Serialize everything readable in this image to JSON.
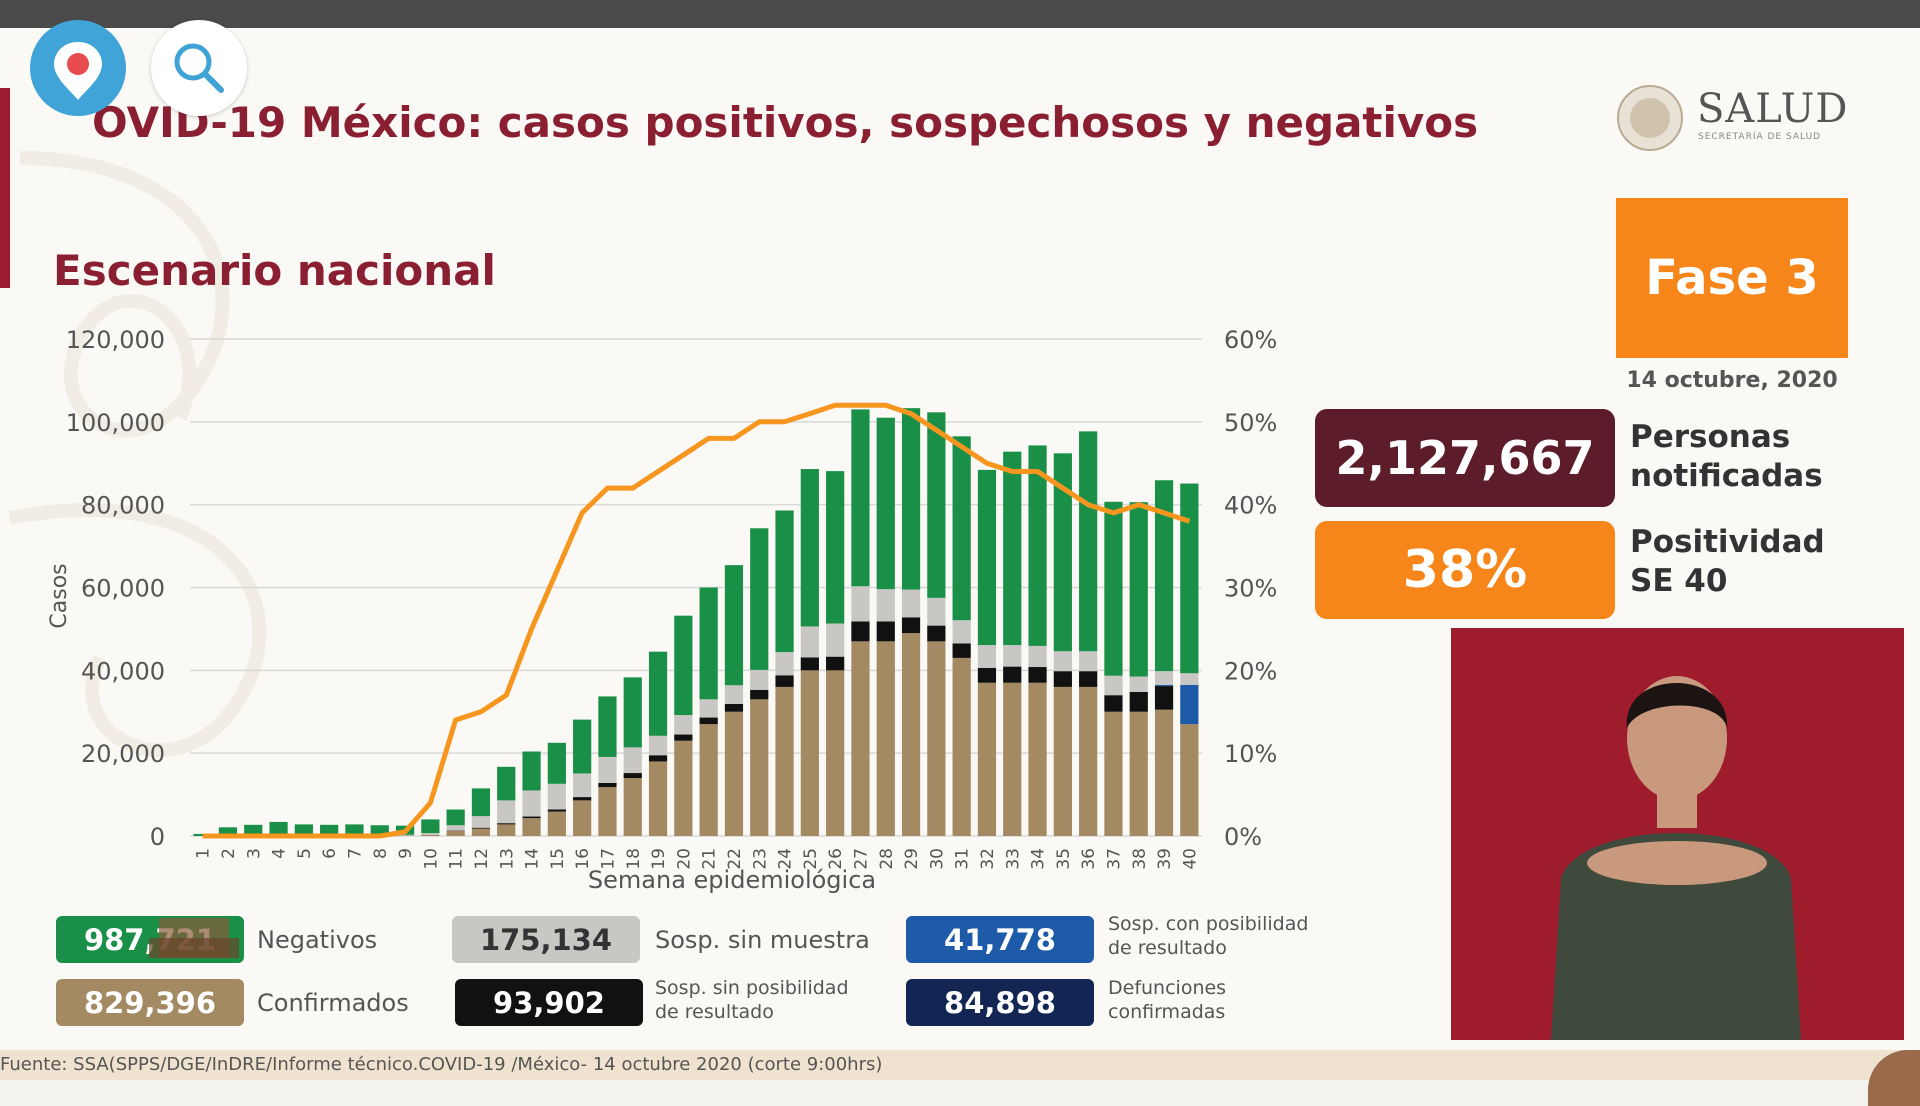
{
  "slide": {
    "title": "OVID-19 México: casos positivos, sospechosos y negativos",
    "subtitle": "Escenario nacional",
    "brand": "SALUD",
    "brand_sub": "SECRETARÍA DE SALUD",
    "phase": "Fase 3",
    "date": "14 octubre, 2020",
    "notified_value": "2,127,667",
    "notified_label_1": "Personas",
    "notified_label_2": "notificadas",
    "positivity_value": "38%",
    "positivity_label_1": "Positividad",
    "positivity_label_2": "SE 40",
    "source": "Fuente: SSA(SPPS/DGE/InDRE/Informe técnico.COVID-19 /México- 14 octubre 2020 (corte 9:00hrs)"
  },
  "legend": {
    "negativos_value": "987,721",
    "negativos_label": "Negativos",
    "confirmados_value": "829,396",
    "confirmados_label": "Confirmados",
    "sin_muestra_value": "175,134",
    "sin_muestra_label": "Sosp. sin muestra",
    "sin_posib_value": "93,902",
    "sin_posib_label_1": "Sosp. sin posibilidad",
    "sin_posib_label_2": "de resultado",
    "con_posib_value": "41,778",
    "con_posib_label_1": "Sosp. con posibilidad",
    "con_posib_label_2": "de resultado",
    "defunciones_value": "84,898",
    "defunciones_label_1": "Defunciones",
    "defunciones_label_2": "confirmadas"
  },
  "colors": {
    "negativos": "#1a8f47",
    "confirmados": "#a48a62",
    "sin_muestra": "#c9c7c4",
    "sin_posib": "#111111",
    "con_posib": "#1d5aa7",
    "defunciones": "#132653",
    "positividad": "#f7961e",
    "brand": "#8a1f32"
  },
  "chart_data": {
    "type": "bar",
    "stacked": true,
    "xlabel": "Semana epidemiológica",
    "ylabel": "Casos",
    "ylim": [
      0,
      120000
    ],
    "yticks": [
      "0",
      "20,000",
      "40,000",
      "60,000",
      "80,000",
      "100,000",
      "120,000"
    ],
    "y2lim": [
      0,
      60
    ],
    "y2ticks": [
      "0%",
      "10%",
      "20%",
      "30%",
      "40%",
      "50%",
      "60%"
    ],
    "grid": true,
    "categories": [
      "1",
      "2",
      "3",
      "4",
      "5",
      "6",
      "7",
      "8",
      "9",
      "10",
      "11",
      "12",
      "13",
      "14",
      "15",
      "16",
      "17",
      "18",
      "19",
      "20",
      "21",
      "22",
      "23",
      "24",
      "25",
      "26",
      "27",
      "28",
      "29",
      "30",
      "31",
      "32",
      "33",
      "34",
      "35",
      "36",
      "37",
      "38",
      "39",
      "40"
    ],
    "series": [
      {
        "name": "Confirmados",
        "values": [
          0,
          0,
          0,
          0,
          0,
          0,
          0,
          0,
          100,
          300,
          1200,
          1800,
          2800,
          4300,
          5900,
          8600,
          11800,
          14000,
          18000,
          23000,
          27000,
          30000,
          33000,
          36000,
          40000,
          40000,
          47000,
          47000,
          49000,
          47000,
          43000,
          37000,
          37000,
          37000,
          36000,
          36000,
          30000,
          30000,
          30500,
          27000
        ]
      },
      {
        "name": "Sosp. sin posibilidad de resultado",
        "values": [
          0,
          0,
          0,
          0,
          0,
          0,
          0,
          0,
          0,
          0,
          100,
          200,
          300,
          400,
          500,
          800,
          1000,
          1200,
          1500,
          1500,
          1600,
          1900,
          2300,
          2800,
          3100,
          3300,
          4800,
          4800,
          3800,
          3800,
          3500,
          3600,
          3900,
          3800,
          3800,
          3800,
          4000,
          4800,
          5700,
          0
        ]
      },
      {
        "name": "Sosp. con posibilidad de resultado",
        "values": [
          0,
          0,
          0,
          0,
          0,
          0,
          0,
          0,
          0,
          0,
          0,
          0,
          0,
          0,
          0,
          0,
          0,
          0,
          0,
          0,
          0,
          0,
          0,
          0,
          0,
          0,
          0,
          0,
          0,
          0,
          0,
          0,
          0,
          0,
          0,
          0,
          0,
          0,
          300,
          9500
        ]
      },
      {
        "name": "Sosp. sin muestra",
        "values": [
          0,
          0,
          0,
          0,
          0,
          0,
          0,
          0,
          200,
          400,
          1300,
          2800,
          5500,
          6300,
          6200,
          5700,
          6300,
          6200,
          4700,
          4700,
          4400,
          4500,
          4800,
          5600,
          7500,
          8000,
          8500,
          7800,
          6700,
          6700,
          5600,
          5500,
          5200,
          5100,
          4800,
          4800,
          4700,
          3700,
          3300,
          2800
        ]
      },
      {
        "name": "Negativos",
        "values": [
          500,
          2100,
          2700,
          3400,
          2800,
          2700,
          2800,
          2600,
          2200,
          3300,
          3800,
          6700,
          8100,
          9400,
          9900,
          13000,
          14600,
          16900,
          20300,
          24000,
          27000,
          29000,
          34200,
          34200,
          38000,
          36800,
          42700,
          41400,
          43800,
          44800,
          44400,
          42300,
          46700,
          48400,
          47800,
          53100,
          42000,
          42100,
          46100,
          45800
        ]
      }
    ],
    "line": {
      "name": "Positividad",
      "values": [
        0,
        0,
        0,
        0,
        0,
        0,
        0,
        0,
        0.5,
        4,
        14,
        15,
        17,
        25,
        32,
        39,
        42,
        42,
        44,
        46,
        48,
        48,
        50,
        50,
        51,
        52,
        52,
        52,
        51,
        49,
        47,
        45,
        44,
        44,
        42,
        40,
        39,
        40,
        39,
        38
      ]
    }
  }
}
